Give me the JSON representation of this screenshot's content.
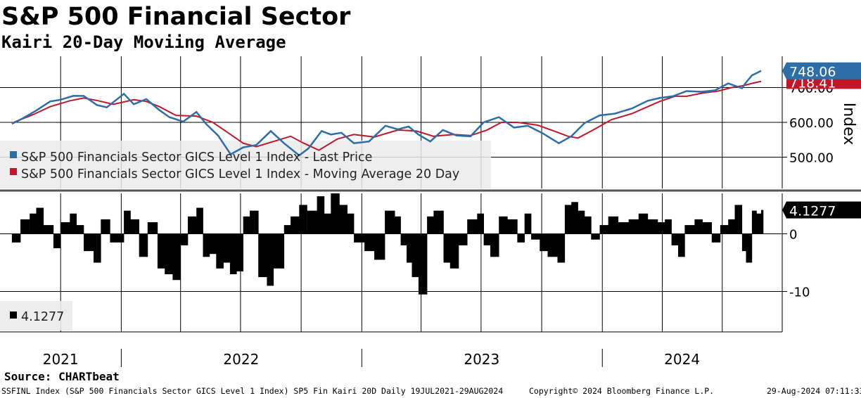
{
  "header": {
    "title": "S&P 500 Financial Sector",
    "subtitle": "Kairi 20-Day Moviing Average"
  },
  "chart_data": [
    {
      "type": "line",
      "ylabel": "Index",
      "ylim": [
        410,
        790
      ],
      "yticks": [
        500,
        600,
        700
      ],
      "ytick_labels": [
        "500.00",
        "600.00",
        "700.00"
      ],
      "grid": true,
      "legend_position": "bottom-left",
      "colors": {
        "price": "#2d6da8",
        "ma": "#c0182b"
      },
      "last_values": {
        "price": 748.06,
        "price_label": "748.06",
        "ma": 718.41,
        "ma_label": "718.41"
      },
      "series": [
        {
          "name": "S&P 500 Financials Sector GICS Level 1 Index - Last Price",
          "x": [
            "2021-07-19",
            "2021-08-05",
            "2021-08-25",
            "2021-09-15",
            "2021-10-01",
            "2021-10-20",
            "2021-11-05",
            "2021-11-25",
            "2021-12-10",
            "2022-01-05",
            "2022-01-20",
            "2022-02-08",
            "2022-02-28",
            "2022-03-15",
            "2022-04-05",
            "2022-04-25",
            "2022-05-10",
            "2022-05-28",
            "2022-06-16",
            "2022-07-05",
            "2022-07-25",
            "2022-08-16",
            "2022-09-05",
            "2022-09-28",
            "2022-10-12",
            "2022-11-01",
            "2022-11-15",
            "2022-12-01",
            "2022-12-20",
            "2023-01-12",
            "2023-02-06",
            "2023-02-25",
            "2023-03-13",
            "2023-03-28",
            "2023-04-15",
            "2023-05-04",
            "2023-05-25",
            "2023-06-15",
            "2023-07-05",
            "2023-07-28",
            "2023-08-20",
            "2023-09-10",
            "2023-10-03",
            "2023-10-27",
            "2023-11-15",
            "2023-12-05",
            "2023-12-28",
            "2024-01-20",
            "2024-02-15",
            "2024-03-10",
            "2024-03-28",
            "2024-04-17",
            "2024-05-08",
            "2024-05-30",
            "2024-06-20",
            "2024-07-10",
            "2024-07-31",
            "2024-08-05",
            "2024-08-15",
            "2024-08-29"
          ],
          "values": [
            596,
            612,
            634,
            660,
            665,
            676,
            676,
            650,
            643,
            682,
            652,
            667,
            635,
            615,
            602,
            630,
            595,
            562,
            508,
            528,
            535,
            575,
            540,
            505,
            525,
            575,
            565,
            570,
            540,
            545,
            590,
            580,
            588,
            565,
            545,
            578,
            562,
            560,
            600,
            615,
            585,
            590,
            568,
            540,
            560,
            598,
            620,
            625,
            640,
            662,
            670,
            675,
            690,
            688,
            692,
            712,
            698,
            712,
            735,
            748
          ]
        },
        {
          "name": "S&P 500 Financials Sector GICS Level 1 Index - Moving Average 20 Day",
          "x": [
            "2021-07-19",
            "2021-08-20",
            "2021-09-15",
            "2021-10-15",
            "2021-11-05",
            "2021-11-25",
            "2021-12-20",
            "2022-01-20",
            "2022-02-08",
            "2022-02-28",
            "2022-03-25",
            "2022-04-25",
            "2022-05-20",
            "2022-06-16",
            "2022-07-05",
            "2022-07-25",
            "2022-08-20",
            "2022-09-15",
            "2022-10-05",
            "2022-10-28",
            "2022-11-25",
            "2022-12-20",
            "2023-01-20",
            "2023-02-25",
            "2023-03-25",
            "2023-04-20",
            "2023-05-20",
            "2023-06-15",
            "2023-07-10",
            "2023-08-01",
            "2023-08-25",
            "2023-09-25",
            "2023-10-20",
            "2023-11-10",
            "2023-11-25",
            "2023-12-20",
            "2024-01-15",
            "2024-02-15",
            "2024-03-10",
            "2024-03-28",
            "2024-04-20",
            "2024-05-08",
            "2024-06-01",
            "2024-06-25",
            "2024-07-15",
            "2024-07-31",
            "2024-08-15",
            "2024-08-29"
          ],
          "values": [
            598,
            622,
            645,
            662,
            670,
            663,
            652,
            665,
            660,
            645,
            620,
            618,
            600,
            565,
            540,
            530,
            545,
            560,
            540,
            520,
            552,
            565,
            558,
            578,
            575,
            560,
            565,
            562,
            578,
            600,
            600,
            592,
            575,
            560,
            555,
            580,
            608,
            625,
            645,
            660,
            675,
            675,
            684,
            690,
            700,
            705,
            712,
            718
          ]
        }
      ]
    },
    {
      "type": "bar",
      "ylim": [
        -17,
        7
      ],
      "yticks": [
        0,
        -10
      ],
      "ytick_labels": [
        "0",
        "-10"
      ],
      "grid": true,
      "legend_position": "bottom-left",
      "colors": {
        "bars": "#000000"
      },
      "last_value": 4.1277,
      "last_value_label": "4.1277",
      "series": [
        {
          "name": "4.1277",
          "x": [
            "2021-07-19",
            "2021-08-01",
            "2021-08-15",
            "2021-08-25",
            "2021-09-05",
            "2021-09-20",
            "2021-10-01",
            "2021-10-15",
            "2021-10-25",
            "2021-11-05",
            "2021-11-20",
            "2021-12-01",
            "2021-12-15",
            "2022-01-05",
            "2022-01-15",
            "2022-01-28",
            "2022-02-10",
            "2022-02-25",
            "2022-03-08",
            "2022-03-20",
            "2022-04-01",
            "2022-04-12",
            "2022-04-25",
            "2022-05-05",
            "2022-05-15",
            "2022-05-25",
            "2022-06-05",
            "2022-06-15",
            "2022-06-25",
            "2022-07-05",
            "2022-07-15",
            "2022-07-28",
            "2022-08-10",
            "2022-08-20",
            "2022-09-05",
            "2022-09-15",
            "2022-09-28",
            "2022-10-10",
            "2022-10-25",
            "2022-11-05",
            "2022-11-15",
            "2022-11-28",
            "2022-12-10",
            "2022-12-20",
            "2023-01-05",
            "2023-01-20",
            "2023-02-05",
            "2023-02-20",
            "2023-03-01",
            "2023-03-10",
            "2023-03-18",
            "2023-03-28",
            "2023-04-10",
            "2023-04-20",
            "2023-05-05",
            "2023-05-15",
            "2023-05-28",
            "2023-06-10",
            "2023-06-25",
            "2023-07-05",
            "2023-07-15",
            "2023-07-28",
            "2023-08-10",
            "2023-08-25",
            "2023-09-05",
            "2023-09-15",
            "2023-09-28",
            "2023-10-10",
            "2023-10-25",
            "2023-11-05",
            "2023-11-15",
            "2023-11-25",
            "2023-12-05",
            "2023-12-15",
            "2023-12-28",
            "2024-01-10",
            "2024-01-25",
            "2024-02-10",
            "2024-02-25",
            "2024-03-10",
            "2024-03-25",
            "2024-04-05",
            "2024-04-15",
            "2024-04-25",
            "2024-05-05",
            "2024-05-20",
            "2024-06-01",
            "2024-06-15",
            "2024-06-28",
            "2024-07-10",
            "2024-07-20",
            "2024-07-31",
            "2024-08-06",
            "2024-08-15",
            "2024-08-22",
            "2024-08-29"
          ],
          "values": [
            -1.5,
            2.5,
            3.5,
            4.5,
            1.5,
            -2.5,
            2,
            3.5,
            1.5,
            -3,
            -5,
            2.5,
            -1.5,
            4,
            2.5,
            -4,
            2,
            -6,
            -7,
            -8,
            -2,
            3,
            4.5,
            -4,
            -3.5,
            -6,
            -5,
            -7,
            -6.5,
            3,
            4,
            -7.5,
            -9,
            -6,
            1.5,
            3,
            5,
            4,
            6.5,
            3.5,
            7,
            5,
            3.5,
            -1.5,
            -3,
            -4.5,
            4,
            3,
            -2,
            -5,
            -7.5,
            -10.5,
            3,
            4,
            -5,
            -6,
            -2,
            2.5,
            3.5,
            -2,
            -4,
            3,
            2.5,
            -1.5,
            3.5,
            -1,
            -3,
            -4,
            -5,
            5,
            5.5,
            4,
            3,
            -1,
            1.5,
            3,
            2,
            2.5,
            3.5,
            2.5,
            2,
            2.5,
            -2,
            -4,
            1.5,
            2.5,
            2,
            -1.5,
            1.5,
            2.5,
            5,
            -3,
            -5,
            4,
            3.5,
            4.1277
          ]
        }
      ]
    }
  ],
  "x_axis": {
    "year_labels": [
      "2021",
      "2022",
      "2023",
      "2024"
    ]
  },
  "footer": {
    "source": "Source: CHARTbeat",
    "description": "SSFINL Index (S&P 500 Financials Sector GICS Level 1 Index) SP5 Fin Kairi 20D  Daily 19JUL2021-29AUG2024",
    "copyright": "Copyright© 2024 Bloomberg Finance L.P.",
    "timestamp": "29-Aug-2024 07:11:33"
  }
}
